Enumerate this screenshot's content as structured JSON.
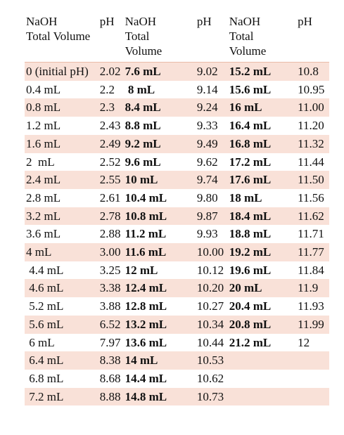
{
  "headers": {
    "vol1": [
      "NaOH",
      "Total Volume"
    ],
    "ph1": "pH",
    "vol2": [
      "NaOH",
      "Total",
      "Volume"
    ],
    "ph2": "pH",
    "vol3": [
      "NaOH",
      "Total",
      "Volume"
    ],
    "ph3": "pH"
  },
  "rows": [
    {
      "v1": "0 (initial pH)",
      "p1": "2.02",
      "v2": "7.6 mL",
      "p2": "9.02",
      "v3": "15.2 mL",
      "p3": "10.8"
    },
    {
      "v1": "0.4 mL",
      "p1": "2.2",
      "v2": " 8 mL",
      "p2": "9.14",
      "v3": "15.6 mL",
      "p3": "10.95"
    },
    {
      "v1": "0.8 mL",
      "p1": "2.3",
      "v2": "8.4 mL",
      "p2": "9.24",
      "v3": "16 mL",
      "p3": "11.00"
    },
    {
      "v1": "1.2 mL",
      "p1": "2.43",
      "v2": "8.8 mL",
      "p2": "9.33",
      "v3": "16.4 mL",
      "p3": "11.20"
    },
    {
      "v1": "1.6 mL",
      "p1": "2.49",
      "v2": "9.2 mL",
      "p2": "9.49",
      "v3": "16.8 mL",
      "p3": "11.32"
    },
    {
      "v1": "2  mL",
      "p1": "2.52",
      "v2": "9.6 mL",
      "p2": "9.62",
      "v3": "17.2 mL",
      "p3": "11.44"
    },
    {
      "v1": "2.4 mL",
      "p1": "2.55",
      "v2": "10 mL",
      "p2": "9.74",
      "v3": "17.6 mL",
      "p3": "11.50"
    },
    {
      "v1": "2.8 mL",
      "p1": "2.61",
      "v2": "10.4 mL",
      "p2": "9.80",
      "v3": "18 mL",
      "p3": "11.56"
    },
    {
      "v1": "3.2 mL",
      "p1": "2.78",
      "v2": "10.8 mL",
      "p2": "9.87",
      "v3": "18.4 mL",
      "p3": "11.62"
    },
    {
      "v1": "3.6 mL",
      "p1": "2.88",
      "v2": "11.2 mL",
      "p2": "9.93",
      "v3": "18.8 mL",
      "p3": "11.71"
    },
    {
      "v1": "4 mL",
      "p1": "3.00",
      "v2": "11.6 mL",
      "p2": "10.00",
      "v3": "19.2 mL",
      "p3": "11.77"
    },
    {
      "v1": " 4.4 mL",
      "p1": "3.25",
      "v2": "12 mL",
      "p2": "10.12",
      "v3": "19.6 mL",
      "p3": "11.84"
    },
    {
      "v1": " 4.6 mL",
      "p1": "3.38",
      "v2": "12.4 mL",
      "p2": "10.20",
      "v3": "20 mL",
      "p3": "11.9"
    },
    {
      "v1": " 5.2 mL",
      "p1": "3.88",
      "v2": "12.8 mL",
      "p2": "10.27",
      "v3": "20.4 mL",
      "p3": "11.93"
    },
    {
      "v1": " 5.6 mL",
      "p1": "6.52",
      "v2": "13.2 mL",
      "p2": "10.34",
      "v3": "20.8 mL",
      "p3": "11.99"
    },
    {
      "v1": " 6 mL",
      "p1": "7.97",
      "v2": "13.6 mL",
      "p2": "10.44",
      "v3": "21.2 mL",
      "p3": "12"
    },
    {
      "v1": " 6.4 mL",
      "p1": "8.38",
      "v2": "14 mL",
      "p2": "10.53",
      "v3": "",
      "p3": ""
    },
    {
      "v1": " 6.8 mL",
      "p1": "8.68",
      "v2": "14.4 mL",
      "p2": "10.62",
      "v3": "",
      "p3": ""
    },
    {
      "v1": " 7.2 mL",
      "p1": "8.88",
      "v2": "14.8 mL",
      "p2": "10.73",
      "v3": "",
      "p3": ""
    }
  ]
}
